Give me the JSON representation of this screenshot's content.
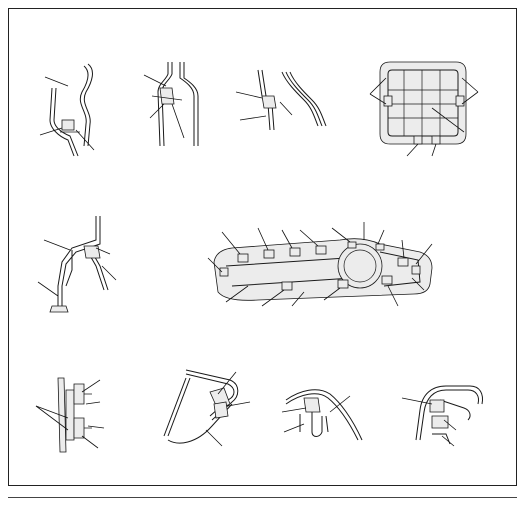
{
  "figure": {
    "background": "#ffffff",
    "line_color": "#1a1a1a",
    "panels": [
      "detail-a",
      "detail-b",
      "detail-c",
      "detail-d",
      "detail-e",
      "detail-f",
      "detail-g",
      "detail-h",
      "detail-i",
      "detail-j"
    ]
  }
}
